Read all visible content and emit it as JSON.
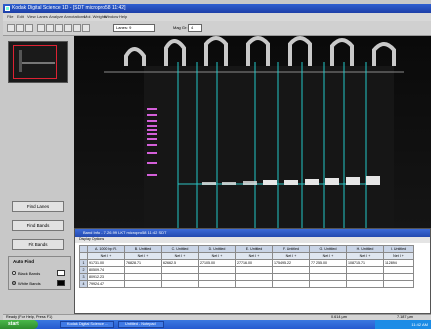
{
  "window": {
    "title": "Kodak Digital Science 1D  - [SDT micropro58 11:42]"
  },
  "menu": [
    "File",
    "Edit",
    "View",
    "Lanes",
    "Analyze",
    "Annotations",
    "Mol. Weights",
    "Window",
    "Help"
  ],
  "toolbar": {
    "lanes_field": "Lanes: 9",
    "mag_label": "Mag Gr:",
    "mag_value": "4"
  },
  "left_panel": {
    "buttons": [
      "Find Lanes",
      "Find Bands",
      "Fit Bands"
    ],
    "auto_find_label": "Auto Find",
    "radio_black": "Black Bands",
    "radio_white": "White Bands"
  },
  "table_window": {
    "title": "Band Info - 7.26.99 LKT micropro58 11:42 SDT",
    "menu_label": "Display   Options"
  },
  "table": {
    "header1": [
      "",
      "A. 1000 bp R.",
      "B. Untitled",
      "C. Untitled",
      "D. Untitled",
      "E. Untitled",
      "F. Untitled",
      "G. Untitled",
      "H. Untitled",
      "I. Untitled"
    ],
    "header2": [
      "",
      "Net I +",
      "Net I +",
      "Net I +",
      "Net I +",
      "Net I +",
      "Net I +",
      "Net I +",
      "Net I +",
      "Net I +"
    ],
    "rows": [
      [
        "1",
        "91731.00",
        "76828.71",
        "62662.5",
        "27105.00",
        "27716.00",
        "175495.22",
        "77 255.00",
        "108715.71",
        "112894"
      ],
      [
        "2",
        "80509.74",
        "",
        "",
        "",
        "",
        "",
        "",
        "",
        ""
      ],
      [
        "3",
        "80912.23",
        "",
        "",
        "",
        "",
        "",
        "",
        "",
        ""
      ],
      [
        "4",
        "79924.47",
        "",
        "",
        "",
        "",
        "",
        "",
        "",
        ""
      ]
    ]
  },
  "status": {
    "left": "Ready (For Help, Press F1)",
    "mid": "0.614 µm",
    "right": "7.187 µm"
  },
  "taskbar": {
    "start": "start",
    "tasks": [
      "Kodak Digital Science ...",
      "Untitled - Notepad"
    ],
    "clock": "11:42 AM"
  },
  "colors": {
    "accent": "#245ad0",
    "lane_line": "#22c7c7",
    "lane_marker": "#c03fd0"
  }
}
